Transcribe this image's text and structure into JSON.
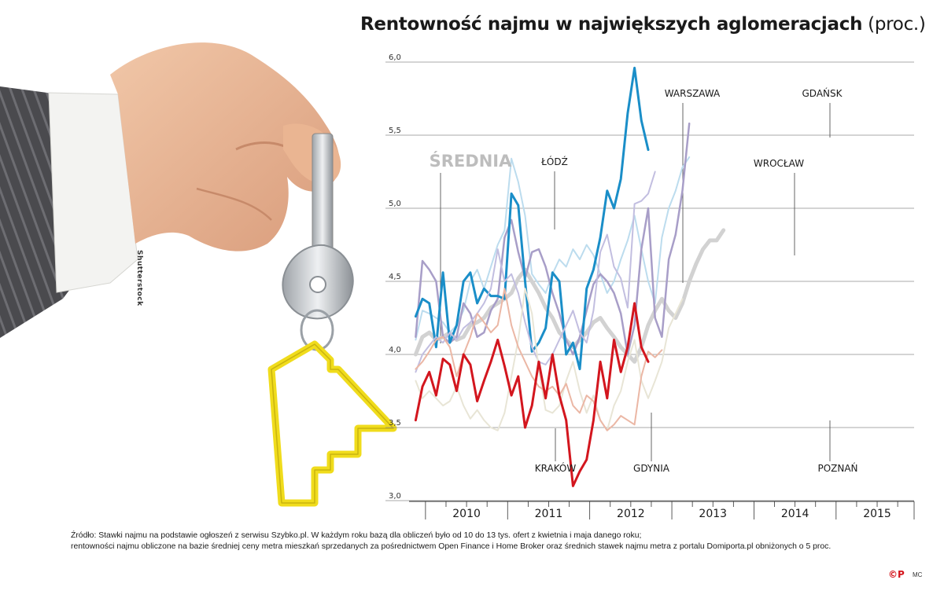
{
  "title_bold": "Rentowność najmu w największych aglomeracjach",
  "title_unit": "(proc.)",
  "photo_credit": "Shutterstock",
  "source_line1": "Źródło: Stawki najmu na podstawie ogłoszeń z serwisu Szybko.pl. W każdym roku bazą dla obliczeń było od  10 do 13 tys. ofert z kwietnia i maja danego roku;",
  "source_line2": "rentowności najmu obliczone na bazie średniej ceny metra mieszkań sprzedanych za pośrednictwem Open Finance i Home Broker oraz średnich stawek najmu metra z portalu Domiporta.pl obniżonych o 5 proc.",
  "logo": "©P",
  "logo_small": "MC",
  "chart_data": {
    "type": "line",
    "title": "Rentowność najmu w największych aglomeracjach (proc.)",
    "ylim": [
      3.0,
      6.0
    ],
    "yticks": [
      "3,0",
      "3,5",
      "4,0",
      "4,5",
      "5,0",
      "5,5",
      "6,0"
    ],
    "xlim": [
      2009.8,
      2015.95
    ],
    "x_year_labels": [
      "2010",
      "2011",
      "2012",
      "2013",
      "2014",
      "2015"
    ],
    "x_start": 2009.88,
    "x_step": 0.0833,
    "grid": true,
    "series": [
      {
        "name": "ŚREDNIA",
        "color": "#d2d2d2",
        "width": 5,
        "values": [
          4.0,
          4.12,
          4.15,
          4.1,
          4.12,
          4.15,
          4.1,
          4.12,
          4.2,
          4.22,
          4.25,
          4.32,
          4.35,
          4.38,
          4.42,
          4.52,
          4.58,
          4.5,
          4.42,
          4.32,
          4.25,
          4.15,
          4.1,
          4.05,
          4.1,
          4.15,
          4.22,
          4.25,
          4.18,
          4.12,
          4.05,
          4.0,
          3.95,
          4.05,
          4.2,
          4.3,
          4.38,
          4.3,
          4.25,
          4.35,
          4.5,
          4.62,
          4.72,
          4.78,
          4.78,
          4.85
        ]
      },
      {
        "name": "WARSZAWA",
        "color": "#bcdcee",
        "width": 2,
        "values": [
          4.1,
          4.3,
          4.28,
          4.25,
          4.22,
          4.15,
          4.2,
          4.3,
          4.5,
          4.58,
          4.45,
          4.6,
          4.75,
          4.85,
          5.34,
          5.18,
          4.95,
          4.55,
          4.48,
          4.42,
          4.55,
          4.65,
          4.6,
          4.72,
          4.65,
          4.75,
          4.68,
          4.55,
          4.42,
          4.5,
          4.65,
          4.78,
          4.95,
          4.72,
          4.5,
          4.35,
          4.8,
          5.0,
          5.12,
          5.28,
          5.35
        ]
      },
      {
        "name": "ŁÓDŹ",
        "color": "#a89ec8",
        "width": 2.5,
        "values": [
          4.12,
          4.64,
          4.58,
          4.5,
          4.12,
          4.08,
          4.12,
          4.35,
          4.28,
          4.12,
          4.15,
          4.3,
          4.38,
          4.8,
          4.92,
          4.7,
          4.52,
          4.7,
          4.72,
          4.6,
          4.42,
          4.28,
          4.1,
          4.0,
          4.12,
          4.3,
          4.48,
          4.55,
          4.5,
          4.42,
          4.28,
          4.0,
          4.2,
          4.72,
          5.0,
          4.25,
          4.12,
          4.65,
          4.82,
          5.12,
          5.58
        ]
      },
      {
        "name": "GDAŃSK",
        "color": "#1a8ec8",
        "width": 3,
        "values": [
          4.26,
          4.38,
          4.35,
          4.05,
          4.56,
          4.08,
          4.2,
          4.5,
          4.56,
          4.35,
          4.45,
          4.4,
          4.4,
          4.38,
          5.1,
          5.02,
          4.5,
          4.02,
          4.08,
          4.18,
          4.56,
          4.5,
          4.0,
          4.08,
          3.9,
          4.45,
          4.58,
          4.8,
          5.12,
          5.0,
          5.2,
          5.65,
          5.96,
          5.6,
          5.4
        ]
      },
      {
        "name": "WROCŁAW",
        "color": "#c2bee0",
        "width": 2,
        "values": [
          3.88,
          4.0,
          4.06,
          4.12,
          4.08,
          4.15,
          4.1,
          4.18,
          4.22,
          4.28,
          4.35,
          4.45,
          4.72,
          4.5,
          4.55,
          4.42,
          4.22,
          4.05,
          3.95,
          3.93,
          4.0,
          4.1,
          4.2,
          4.3,
          4.15,
          4.08,
          4.3,
          4.7,
          4.82,
          4.6,
          4.52,
          4.32,
          5.03,
          5.05,
          5.1,
          5.25
        ]
      },
      {
        "name": "KRAKÓW",
        "color": "#e8e5d6",
        "width": 2,
        "values": [
          3.82,
          3.7,
          3.75,
          3.7,
          3.65,
          3.68,
          3.78,
          3.65,
          3.56,
          3.62,
          3.55,
          3.5,
          3.48,
          3.6,
          3.85,
          4.1,
          4.45,
          4.28,
          3.9,
          3.62,
          3.6,
          3.65,
          3.82,
          3.95,
          3.75,
          3.6,
          3.72,
          3.55,
          3.48,
          3.65,
          3.75,
          3.95,
          4.1,
          3.82,
          3.7,
          3.82,
          3.95,
          4.18,
          4.28,
          4.38
        ]
      },
      {
        "name": "POZNAŃ",
        "color": "#ebb7a5",
        "width": 2,
        "values": [
          3.9,
          3.95,
          4.02,
          4.1,
          4.12,
          4.05,
          3.85,
          4.0,
          4.12,
          4.28,
          4.22,
          4.15,
          4.2,
          4.45,
          4.2,
          4.05,
          3.95,
          3.85,
          3.78,
          3.75,
          3.78,
          3.72,
          3.8,
          3.65,
          3.6,
          3.72,
          3.68,
          3.55,
          3.48,
          3.52,
          3.58,
          3.55,
          3.52,
          3.85,
          4.02,
          3.98,
          4.03
        ]
      },
      {
        "name": "GDYNIA",
        "color": "#d3161e",
        "width": 3,
        "values": [
          3.55,
          3.78,
          3.88,
          3.72,
          3.97,
          3.93,
          3.75,
          4.0,
          3.93,
          3.68,
          3.82,
          3.95,
          4.1,
          3.92,
          3.72,
          3.85,
          3.5,
          3.65,
          3.95,
          3.7,
          4.0,
          3.72,
          3.55,
          3.1,
          3.2,
          3.28,
          3.55,
          3.95,
          3.7,
          4.1,
          3.88,
          4.05,
          4.35,
          4.05,
          3.95
        ]
      }
    ],
    "annotations": [
      {
        "label": "ŚREDNIA"
      },
      {
        "label": "ŁÓDŹ"
      },
      {
        "label": "WARSZAWA"
      },
      {
        "label": "GDAŃSK"
      },
      {
        "label": "WROCŁAW"
      },
      {
        "label": "KRAKÓW"
      },
      {
        "label": "GDYNIA"
      },
      {
        "label": "POZNAŃ"
      }
    ]
  }
}
